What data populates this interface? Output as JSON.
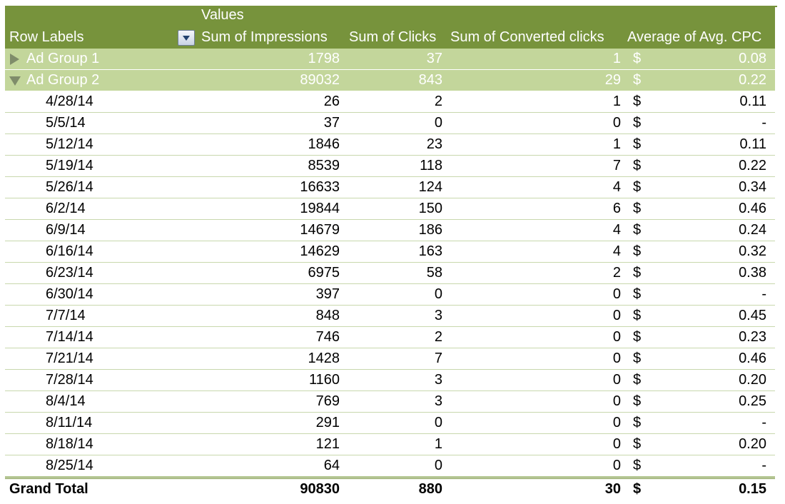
{
  "header": {
    "values_label": "Values",
    "row_labels": "Row Labels",
    "columns": [
      "Sum of Impressions",
      "Sum of Clicks",
      "Sum of Converted clicks",
      "Average of Avg. CPC"
    ]
  },
  "groups": [
    {
      "label": "Ad Group 1",
      "impressions": "1798",
      "clicks": "37",
      "converted": "1",
      "currency": "$",
      "cpc": "0.08",
      "state": "collapsed"
    },
    {
      "label": "Ad Group 2",
      "impressions": "89032",
      "clicks": "843",
      "converted": "29",
      "currency": "$",
      "cpc": "0.22",
      "state": "expanded"
    }
  ],
  "rows": [
    {
      "label": "4/28/14",
      "impressions": "26",
      "clicks": "2",
      "converted": "1",
      "currency": "$",
      "cpc": "0.11"
    },
    {
      "label": "5/5/14",
      "impressions": "37",
      "clicks": "0",
      "converted": "0",
      "currency": "$",
      "cpc": "-"
    },
    {
      "label": "5/12/14",
      "impressions": "1846",
      "clicks": "23",
      "converted": "1",
      "currency": "$",
      "cpc": "0.11"
    },
    {
      "label": "5/19/14",
      "impressions": "8539",
      "clicks": "118",
      "converted": "7",
      "currency": "$",
      "cpc": "0.22"
    },
    {
      "label": "5/26/14",
      "impressions": "16633",
      "clicks": "124",
      "converted": "4",
      "currency": "$",
      "cpc": "0.34"
    },
    {
      "label": "6/2/14",
      "impressions": "19844",
      "clicks": "150",
      "converted": "6",
      "currency": "$",
      "cpc": "0.46"
    },
    {
      "label": "6/9/14",
      "impressions": "14679",
      "clicks": "186",
      "converted": "4",
      "currency": "$",
      "cpc": "0.24"
    },
    {
      "label": "6/16/14",
      "impressions": "14629",
      "clicks": "163",
      "converted": "4",
      "currency": "$",
      "cpc": "0.32"
    },
    {
      "label": "6/23/14",
      "impressions": "6975",
      "clicks": "58",
      "converted": "2",
      "currency": "$",
      "cpc": "0.38"
    },
    {
      "label": "6/30/14",
      "impressions": "397",
      "clicks": "0",
      "converted": "0",
      "currency": "$",
      "cpc": "-"
    },
    {
      "label": "7/7/14",
      "impressions": "848",
      "clicks": "3",
      "converted": "0",
      "currency": "$",
      "cpc": "0.45"
    },
    {
      "label": "7/14/14",
      "impressions": "746",
      "clicks": "2",
      "converted": "0",
      "currency": "$",
      "cpc": "0.23"
    },
    {
      "label": "7/21/14",
      "impressions": "1428",
      "clicks": "7",
      "converted": "0",
      "currency": "$",
      "cpc": "0.46"
    },
    {
      "label": "7/28/14",
      "impressions": "1160",
      "clicks": "3",
      "converted": "0",
      "currency": "$",
      "cpc": "0.20"
    },
    {
      "label": "8/4/14",
      "impressions": "769",
      "clicks": "3",
      "converted": "0",
      "currency": "$",
      "cpc": "0.25"
    },
    {
      "label": "8/11/14",
      "impressions": "291",
      "clicks": "0",
      "converted": "0",
      "currency": "$",
      "cpc": "-"
    },
    {
      "label": "8/18/14",
      "impressions": "121",
      "clicks": "1",
      "converted": "0",
      "currency": "$",
      "cpc": "0.20"
    },
    {
      "label": "8/25/14",
      "impressions": "64",
      "clicks": "0",
      "converted": "0",
      "currency": "$",
      "cpc": "-"
    }
  ],
  "total": {
    "label": "Grand Total",
    "impressions": "90830",
    "clicks": "880",
    "converted": "30",
    "currency": "$",
    "cpc": "0.15"
  },
  "colors": {
    "header_bg": "#77933c",
    "group_bg": "#c3d69b",
    "row_border": "#c8d8ad"
  }
}
